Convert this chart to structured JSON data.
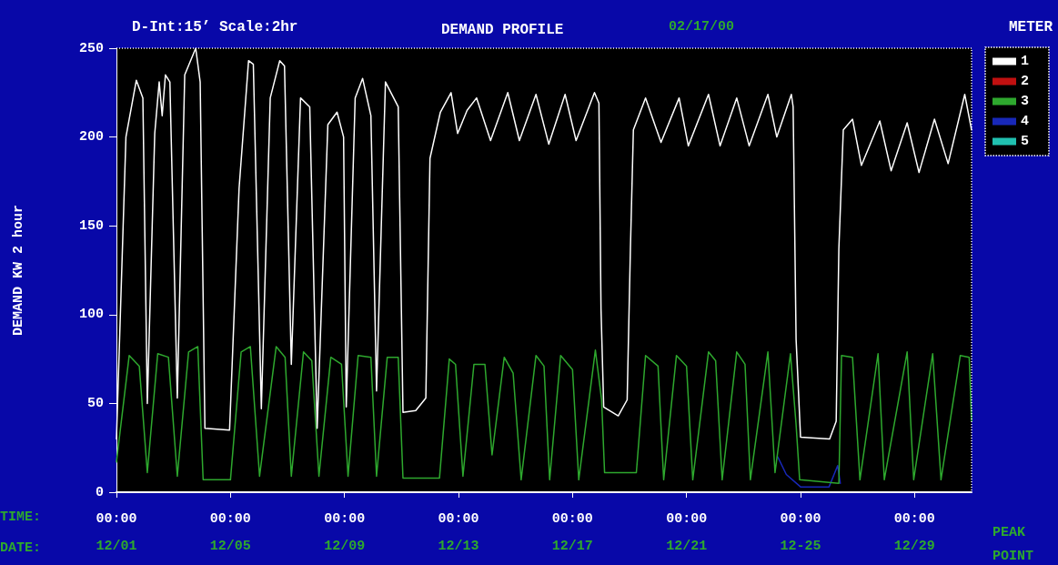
{
  "chart_data": {
    "type": "line",
    "title": "DEMAND PROFILE",
    "subtitle": "D-Int:15’ Scale:2hr",
    "ylabel": "DEMAND KW 2 hour",
    "legend_title": "METER",
    "annotations": [
      "02/17/00",
      "TIME:",
      "DATE:",
      "PEAK POINT"
    ],
    "xlim": [
      "--12-01T00:00",
      "--12-31T00:00"
    ],
    "xticks": [
      {
        "value": "--12-01T00:00",
        "label": "00:00\n12/01"
      },
      {
        "value": "--12-05T00:00",
        "label": "00:00\n12/05"
      },
      {
        "value": "--12-09T00:00",
        "label": "00:00\n12/09"
      },
      {
        "value": "--12-13T00:00",
        "label": "00:00\n12/13"
      },
      {
        "value": "--12-17T00:00",
        "label": "00:00\n12/17"
      },
      {
        "value": "--12-21T00:00",
        "label": "00:00\n12/21"
      },
      {
        "value": "--12-25T00:00",
        "label": "00:00\n12-25"
      },
      {
        "value": "--12-29T00:00",
        "label": "00:00\n12/29"
      }
    ],
    "ylim": [
      0,
      250
    ],
    "yticks": [
      0,
      50,
      100,
      150,
      200,
      250
    ],
    "grid": false,
    "legend": "top right",
    "marker": "none",
    "line_style": "solid",
    "series": [
      {
        "name": "1",
        "color": "#ffffff",
        "x": [
          "--12-01T00:00",
          "--12-01T08:00",
          "--12-01T16:45",
          "--12-01T22:15",
          "--12-02T02:00",
          "--12-02T08:15",
          "--12-02T12:00",
          "--12-02T14:30",
          "--12-02T17:15",
          "--12-02T21:00",
          "--12-03T03:15",
          "--12-03T09:30",
          "--12-03T18:45",
          "--12-03T22:30",
          "--12-04T02:30",
          "--12-04T23:15",
          "--12-05T07:15",
          "--12-05T15:15",
          "--12-05T19:15",
          "--12-06T02:00",
          "--12-06T09:30",
          "--12-06T17:30",
          "--12-06T21:30",
          "--12-07T03:15",
          "--12-07T11:00",
          "--12-07T18:45",
          "--12-08T01:00",
          "--12-08T10:00",
          "--12-08T17:45",
          "--12-08T23:15",
          "--12-09T01:30",
          "--12-09T09:00",
          "--12-09T15:15",
          "--12-09T22:15",
          "--12-10T03:00",
          "--12-10T10:30",
          "--12-10T21:15",
          "--12-11T01:15",
          "--12-11T12:00",
          "--12-11T20:30",
          "--12-12T00:00",
          "--12-12T08:45",
          "--12-12T17:45",
          "--12-12T23:15",
          "--12-13T07:15",
          "--12-13T15:15",
          "--12-14T03:00",
          "--12-14T17:30",
          "--12-15T03:15",
          "--12-15T17:15",
          "--12-16T04:00",
          "--12-16T17:45",
          "--12-17T03:00",
          "--12-17T18:30",
          "--12-17T22:15",
          "--12-18T00:00",
          "--12-18T02:15",
          "--12-18T14:30",
          "--12-18T22:00",
          "--12-19T00:45",
          "--12-19T03:15",
          "--12-19T13:30",
          "--12-20T02:30",
          "--12-20T17:45",
          "--12-21T01:30",
          "--12-21T18:30",
          "--12-22T04:15",
          "--12-22T18:15",
          "--12-23T04:45",
          "--12-23T20:30",
          "--12-24T04:00",
          "--12-24T16:15",
          "--12-24T17:45",
          "--12-24T20:15",
          "--12-25T00:00",
          "--12-26T00:30",
          "--12-26T06:00",
          "--12-26T08:15",
          "--12-26T12:00",
          "--12-26T19:45",
          "--12-27T03:15",
          "--12-27T18:45",
          "--12-28T04:15",
          "--12-28T17:45",
          "--12-29T03:45",
          "--12-29T16:45",
          "--12-30T04:15",
          "--12-30T18:15",
          "--12-31T00:00"
        ],
        "values": [
          30,
          200,
          232,
          222,
          50,
          202,
          231,
          212,
          235,
          231,
          53,
          235,
          250,
          231,
          36,
          35,
          171,
          243,
          241,
          47,
          222,
          243,
          240,
          72,
          222,
          217,
          36,
          207,
          214,
          200,
          48,
          222,
          233,
          212,
          57,
          231,
          217,
          45,
          46,
          53,
          188,
          214,
          225,
          202,
          215,
          222,
          198,
          225,
          198,
          224,
          196,
          224,
          198,
          225,
          219,
          103,
          48,
          43,
          52,
          137,
          204,
          222,
          197,
          222,
          195,
          224,
          195,
          222,
          195,
          224,
          200,
          224,
          217,
          86,
          31,
          30,
          40,
          137,
          204,
          210,
          184,
          209,
          181,
          208,
          180,
          210,
          185,
          224,
          204
        ]
      },
      {
        "name": "2",
        "color": "#c01010"
      },
      {
        "name": "3",
        "color": "#2ea82e",
        "x": [
          "--12-01T00:00",
          "--12-01T10:45",
          "--12-01T19:15",
          "--12-02T02:00",
          "--12-02T10:45",
          "--12-02T19:45",
          "--12-03T03:15",
          "--12-03T12:45",
          "--12-03T20:30",
          "--12-04T01:00",
          "--12-05T00:00",
          "--12-05T09:00",
          "--12-05T16:45",
          "--12-06T00:30",
          "--12-06T14:30",
          "--12-06T22:00",
          "--12-07T03:15",
          "--12-07T13:30",
          "--12-07T20:30",
          "--12-08T02:30",
          "--12-08T12:30",
          "--12-08T21:30",
          "--12-09T03:00",
          "--12-09T11:30",
          "--12-09T22:15",
          "--12-10T03:00",
          "--12-10T12:00",
          "--12-10T21:15",
          "--12-11T01:15",
          "--12-12T08:00",
          "--12-12T16:15",
          "--12-12T21:30",
          "--12-13T03:45",
          "--12-13T13:00",
          "--12-13T22:15",
          "--12-14T04:15",
          "--12-14T14:30",
          "--12-14T22:00",
          "--12-15T04:45",
          "--12-15T17:15",
          "--12-16T00:00",
          "--12-16T04:45",
          "--12-16T14:00",
          "--12-17T00:00",
          "--12-17T05:15",
          "--12-17T19:15",
          "--12-18T00:30",
          "--12-18T03:00",
          "--12-19T05:45",
          "--12-19T13:30",
          "--12-20T00:00",
          "--12-20T04:45",
          "--12-20T15:30",
          "--12-21T00:00",
          "--12-21T05:15",
          "--12-21T18:30",
          "--12-22T00:30",
          "--12-22T06:00",
          "--12-22T18:15",
          "--12-23T01:15",
          "--12-23T05:45",
          "--12-23T20:30",
          "--12-24T02:30",
          "--12-24T15:30",
          "--12-24T20:15",
          "--12-24T23:15",
          "--12-26T08:15",
          "--12-26T10:30",
          "--12-26T19:45",
          "--12-27T02:00",
          "--12-27T17:15",
          "--12-27T22:30",
          "--12-28T17:45",
          "--12-28T23:15",
          "--12-29T15:15",
          "--12-29T22:15",
          "--12-30T14:30",
          "--12-30T22:00",
          "--12-31T00:00"
        ],
        "values": [
          17,
          77,
          71,
          11,
          78,
          76,
          9,
          79,
          82,
          7,
          7,
          79,
          82,
          9,
          82,
          76,
          9,
          79,
          74,
          9,
          76,
          72,
          9,
          77,
          76,
          9,
          76,
          76,
          8,
          8,
          75,
          72,
          9,
          72,
          72,
          21,
          76,
          67,
          7,
          77,
          71,
          7,
          77,
          69,
          7,
          80,
          52,
          11,
          11,
          77,
          71,
          7,
          77,
          71,
          7,
          79,
          74,
          7,
          79,
          72,
          7,
          79,
          11,
          78,
          38,
          7,
          5,
          77,
          76,
          7,
          78,
          7,
          79,
          7,
          78,
          7,
          77,
          76,
          40
        ]
      },
      {
        "name": "4",
        "color": "#1828b8",
        "x": [
          "--12-24T04:45",
          "--12-24T12:00",
          "--12-25T00:00",
          "--12-26T00:00",
          "--12-26T07:15",
          "--12-26T09:30"
        ],
        "values": [
          20,
          10,
          3,
          3,
          15,
          5
        ]
      },
      {
        "name": "5",
        "color": "#20c0b0"
      }
    ]
  }
}
